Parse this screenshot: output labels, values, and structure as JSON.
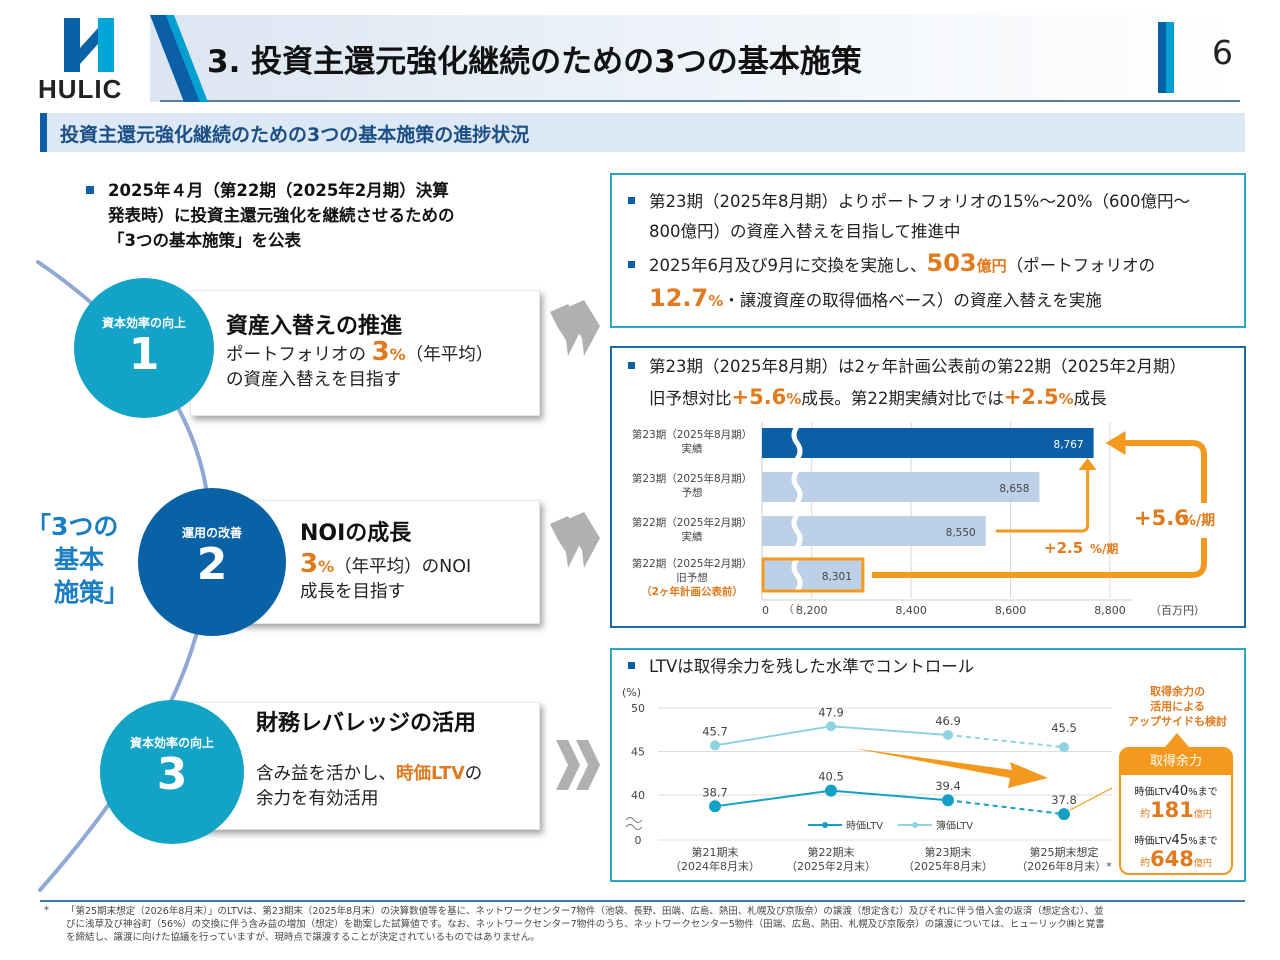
{
  "header": {
    "logo_text": "HULIC",
    "title": "3. 投資主還元強化継続のための3つの基本施策",
    "page_number": "6"
  },
  "subheading": "投資主還元強化継続のための3つの基本施策の進捗状況",
  "intro": {
    "lines": [
      "2025年４月（第22期（2025年2月期）決算",
      "発表時）に投資主還元強化を継続させるための",
      "「3つの基本施策」を公表"
    ]
  },
  "side_label": {
    "lines": [
      "「3つの",
      "基本",
      "施策」"
    ]
  },
  "measures": [
    {
      "category": "資本効率の向上",
      "number": "1",
      "title": "資産入替えの推進",
      "body_prefix": "ポートフォリオの",
      "highlight_num": "3",
      "highlight_unit": "%",
      "body_suffix": "（年平均）",
      "body_line2": "の資産入替えを目指す",
      "circle_color": "#12a3c7"
    },
    {
      "category": "運用の改善",
      "number": "2",
      "title": "NOIの成長",
      "highlight_num": "3",
      "highlight_unit": "%",
      "body_suffix": "（年平均）のNOI",
      "body_line2": "成長を目指す",
      "circle_color": "#0a62a6"
    },
    {
      "category": "資本効率の向上",
      "number": "3",
      "title": "財務レバレッジの活用",
      "body_prefix": "含み益を活かし、",
      "highlight_text": "時価LTV",
      "body_suffix": "の",
      "body_line2": "余力を有効活用",
      "circle_color": "#12a3c7"
    }
  ],
  "panel1": {
    "bullet1_line1": "第23期（2025年8月期）よりポートフォリオの15%～20%（600億円～",
    "bullet1_line2": "800億円）の資産入替えを目指して推進中",
    "bullet2_prefix": "2025年6月及び9月に交換を実施し、",
    "bullet2_amount": "503",
    "bullet2_amount_unit": "億円",
    "bullet2_mid": "（ポートフォリオの",
    "bullet2_pct": "12.7",
    "bullet2_pct_unit": "%",
    "bullet2_suffix": "・譲渡資産の取得価格ベース）の資産入替えを実施"
  },
  "panel2": {
    "line1": "第23期（2025年8月期）は2ヶ年計画公表前の第22期（2025年2月期）",
    "line2_prefix": "旧予想対比",
    "growth1": "+5.6",
    "growth1_unit": "%",
    "line2_mid": "成長。第22期実績対比では",
    "growth2": "+2.5",
    "growth2_unit": "%",
    "line2_suffix": "成長"
  },
  "panel3": {
    "title": "LTVは取得余力を残した水準でコントロール",
    "callout_lines": [
      "取得余力の",
      "活用による",
      "アップサイドも検討"
    ],
    "capacity_box": {
      "title": "取得余力",
      "row1_label_prefix": "時価LTV",
      "row1_pct": "40",
      "row1_label_suffix": "%まで",
      "row1_approx": "約",
      "row1_value": "181",
      "row1_unit": "億円",
      "row2_label_prefix": "時価LTV",
      "row2_pct": "45",
      "row2_label_suffix": "%まで",
      "row2_approx": "約",
      "row2_value": "648",
      "row2_unit": "億円"
    }
  },
  "chart_data": [
    {
      "type": "bar",
      "orientation": "horizontal",
      "title": "NOI",
      "categories": [
        "第23期（2025年8月期）実績",
        "第23期（2025年8月期）予想",
        "第22期（2025年2月期）実績",
        "第22期（2025年2月期）旧予想（2ヶ年計画公表前）"
      ],
      "category_lines": [
        [
          "第23期（2025年8月期）",
          "実績"
        ],
        [
          "第23期（2025年8月期）",
          "予想"
        ],
        [
          "第22期（2025年2月期）",
          "実績"
        ],
        [
          "第22期（2025年2月期）",
          "旧予想",
          "（2ヶ年計画公表前）"
        ]
      ],
      "values": [
        8767,
        8658,
        8550,
        8301
      ],
      "value_labels": [
        "8,767",
        "8,658",
        "8,550",
        "8,301"
      ],
      "bar_colors": [
        "#0a5fa6",
        "#bcd0e8",
        "#bcd0e8",
        "#bcd0e8"
      ],
      "highlight_index": 3,
      "xlim": [
        8100,
        8800
      ],
      "axis_break": true,
      "x_ticks": [
        "0",
        "8,200",
        "8,400",
        "8,600",
        "8,800"
      ],
      "x_tick_values": [
        0,
        8200,
        8400,
        8600,
        8800
      ],
      "unit": "（百万円）",
      "annotations": [
        {
          "text": "+2.5",
          "unit": "%/期",
          "from": "第22期（2025年2月期）実績",
          "to": "第23期（2025年8月期）実績"
        },
        {
          "text": "+5.6",
          "unit": "%/期",
          "from": "第22期（2025年2月期）旧予想",
          "to": "第23期（2025年8月期）実績"
        }
      ],
      "accent_color": "#f39a1e"
    },
    {
      "type": "line",
      "title": "LTV",
      "ylabel": "(%)",
      "y_ticks": [
        "0",
        "40",
        "45",
        "50"
      ],
      "ylim": [
        35,
        50
      ],
      "axis_break": true,
      "categories": [
        [
          "第21期末",
          "（2024年8月末）"
        ],
        [
          "第22期末",
          "（2025年2月末）"
        ],
        [
          "第23期末",
          "（2025年8月末）"
        ],
        [
          "第25期末想定",
          "（2026年8月末）*"
        ]
      ],
      "series": [
        {
          "name": "時価LTV",
          "values": [
            38.7,
            40.5,
            39.4,
            37.8
          ],
          "labels": [
            "38.7",
            "40.5",
            "39.4",
            "37.8"
          ],
          "color": "#12a0c4",
          "projected_from_index": 2
        },
        {
          "name": "簿価LTV",
          "values": [
            45.7,
            47.9,
            46.9,
            45.5
          ],
          "labels": [
            "45.7",
            "47.9",
            "46.9",
            "45.5"
          ],
          "color": "#8fd3e0",
          "projected_from_index": 2
        }
      ],
      "legend": "bottom-center"
    }
  ],
  "footnote": {
    "marker": "*",
    "lines": [
      "「第25期末想定（2026年8月末）」のLTVは、第23期末（2025年8月末）の決算数値等を基に、ネットワークセンター7物件（池袋、長野、田端、広島、熱田、札幌及び京阪奈）の譲渡（想定含む）及びそれに伴う借入金の返済（想定含む）、並",
      "びに浅草及び神谷町（56%）の交換に伴う含み益の増加（想定）を勘案した試算値です。なお、ネットワークセンター7物件のうち、ネットワークセンター5物件（田端、広島、熱田、札幌及び京阪奈）の譲渡については、ヒューリック㈱と覚書",
      "を締結し、譲渡に向けた協議を行っていますが、現時点で譲渡することが決定されているものではありません。"
    ]
  }
}
